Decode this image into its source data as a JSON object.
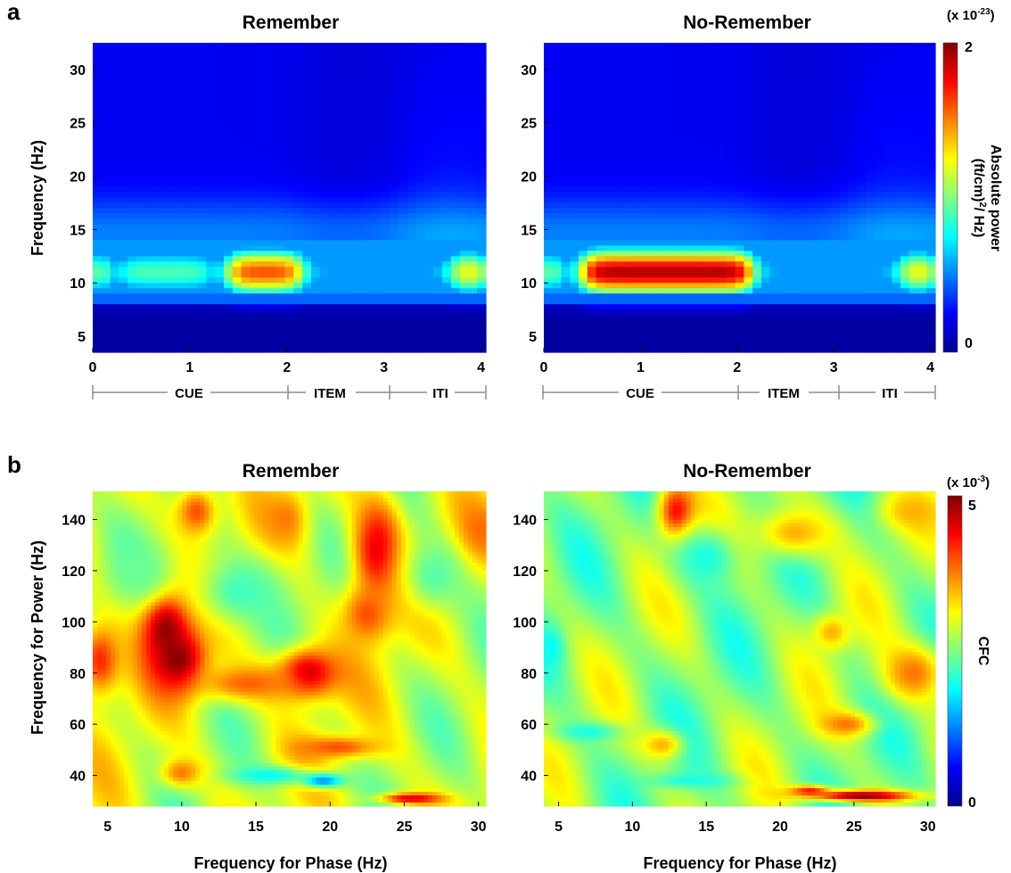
{
  "panel_labels": {
    "a": "a",
    "b": "b"
  },
  "titles": {
    "remember": "Remember",
    "no_remember": "No-Remember"
  },
  "colorscale_stops": [
    "#00008f",
    "#0000ff",
    "#0080ff",
    "#00ffff",
    "#80ff80",
    "#ffff00",
    "#ff8000",
    "#ff0000",
    "#800000"
  ],
  "panel_a": {
    "ylabel": "Frequency (Hz)",
    "x_ticks": [
      0,
      1,
      2,
      3,
      4
    ],
    "y_ticks": [
      5,
      10,
      15,
      20,
      25,
      30
    ],
    "timeline": {
      "cue": "CUE",
      "item": "ITEM",
      "iti": "ITI"
    },
    "colorbar": {
      "multiplier": "(x 10",
      "exponent": "-23",
      "close": ")",
      "max_label": "2",
      "min_label": "0",
      "label_line1": "Absolute power",
      "label_line2": "(ft/cm)",
      "label_sup": "2",
      "label_tail": "/ Hz)"
    }
  },
  "panel_b": {
    "ylabel": "Frequency for Power (Hz)",
    "xlabel": "Frequency for Phase (Hz)",
    "x_ticks": [
      5,
      10,
      15,
      20,
      25,
      30
    ],
    "y_ticks": [
      40,
      60,
      80,
      100,
      120,
      140
    ],
    "colorbar": {
      "multiplier": "(x 10",
      "exponent": "-3",
      "close": ")",
      "max_label": "5",
      "min_label": "0",
      "label": "CFC"
    }
  },
  "chart_data": [
    {
      "type": "heatmap",
      "title": "Remember",
      "ylabel": "Frequency (Hz)",
      "xlim": [
        0,
        4.05
      ],
      "ylim": [
        3.5,
        32.5
      ],
      "zlim": [
        0,
        2
      ],
      "z_units": "x 10^-23 (ft/cm)^2/Hz",
      "features": [
        {
          "t": [
            0,
            0.15
          ],
          "f": [
            8.5,
            13.5
          ],
          "z": 1.2
        },
        {
          "t": [
            0.3,
            1.2
          ],
          "f": [
            9.0,
            13.0
          ],
          "z": 0.9
        },
        {
          "t": [
            1.4,
            2.15
          ],
          "f": [
            9.0,
            13.0
          ],
          "z": 1.6
        },
        {
          "t": [
            2.2,
            3.7
          ],
          "f": [
            9.0,
            13.0
          ],
          "z": 0.5
        },
        {
          "t": [
            3.7,
            4.05
          ],
          "f": [
            9.0,
            13.0
          ],
          "z": 1.3
        },
        {
          "t": [
            0,
            4.05
          ],
          "f": [
            3.5,
            8.0
          ],
          "z": 0.05
        },
        {
          "t": [
            0,
            4.05
          ],
          "f": [
            15,
            32.5
          ],
          "z": 0.2
        }
      ]
    },
    {
      "type": "heatmap",
      "title": "No-Remember",
      "xlim": [
        0,
        4.05
      ],
      "ylim": [
        3.5,
        32.5
      ],
      "zlim": [
        0,
        2
      ],
      "features": [
        {
          "t": [
            0,
            0.15
          ],
          "f": [
            8.5,
            13.5
          ],
          "z": 1.2
        },
        {
          "t": [
            0.4,
            2.15
          ],
          "f": [
            9.0,
            13.0
          ],
          "z": 1.9
        },
        {
          "t": [
            2.2,
            3.7
          ],
          "f": [
            9.0,
            13.0
          ],
          "z": 0.5
        },
        {
          "t": [
            3.7,
            4.05
          ],
          "f": [
            9.0,
            13.0
          ],
          "z": 1.3
        },
        {
          "t": [
            0,
            4.05
          ],
          "f": [
            3.5,
            8.0
          ],
          "z": 0.05
        },
        {
          "t": [
            0,
            4.05
          ],
          "f": [
            15,
            32.5
          ],
          "z": 0.2
        }
      ]
    },
    {
      "type": "heatmap",
      "title": "Remember",
      "xlabel": "Frequency for Phase (Hz)",
      "ylabel": "Frequency for Power (Hz)",
      "xlim": [
        4,
        30.5
      ],
      "ylim": [
        28,
        151
      ],
      "zlim": [
        0,
        5
      ],
      "z_units": "x 10^-3 CFC",
      "baseline": 2.9,
      "blobs": [
        {
          "x": 9,
          "y": 98,
          "sx": 1.2,
          "sy": 10,
          "z": 5.0
        },
        {
          "x": 9.8,
          "y": 85,
          "sx": 1.3,
          "sy": 9,
          "z": 5.0
        },
        {
          "x": 18.5,
          "y": 80,
          "sx": 1.5,
          "sy": 7,
          "z": 4.7
        },
        {
          "x": 14.5,
          "y": 76,
          "sx": 2.5,
          "sy": 5,
          "z": 3.9
        },
        {
          "x": 23.2,
          "y": 128,
          "sx": 1.2,
          "sy": 15,
          "z": 4.5
        },
        {
          "x": 22.5,
          "y": 103,
          "sx": 1.2,
          "sy": 8,
          "z": 4.0
        },
        {
          "x": 4.5,
          "y": 85,
          "sx": 1.0,
          "sy": 10,
          "z": 4.2
        },
        {
          "x": 11,
          "y": 143,
          "sx": 1.0,
          "sy": 7,
          "z": 4.0
        },
        {
          "x": 17,
          "y": 140,
          "sx": 1.0,
          "sy": 8,
          "z": 3.8
        },
        {
          "x": 30,
          "y": 135,
          "sx": 1.0,
          "sy": 8,
          "z": 3.9
        },
        {
          "x": 10,
          "y": 41,
          "sx": 1.0,
          "sy": 4,
          "z": 3.8
        },
        {
          "x": 20.5,
          "y": 51,
          "sx": 2.0,
          "sy": 3,
          "z": 4.0
        },
        {
          "x": 25.5,
          "y": 31,
          "sx": 1.5,
          "sy": 1.5,
          "z": 4.6
        },
        {
          "x": 19.5,
          "y": 38,
          "sx": 1.0,
          "sy": 2,
          "z": 1.2
        },
        {
          "x": 16,
          "y": 40,
          "sx": 2.0,
          "sy": 2.5,
          "z": 1.9
        },
        {
          "x": 14,
          "y": 112,
          "sx": 2.2,
          "sy": 10,
          "z": 2.2
        },
        {
          "x": 27,
          "y": 118,
          "sx": 1.5,
          "sy": 10,
          "z": 2.3
        },
        {
          "x": 7,
          "y": 120,
          "sx": 1.5,
          "sy": 8,
          "z": 2.4
        }
      ]
    },
    {
      "type": "heatmap",
      "title": "No-Remember",
      "xlabel": "Frequency for Phase (Hz)",
      "xlim": [
        4,
        30.5
      ],
      "ylim": [
        28,
        151
      ],
      "zlim": [
        0,
        5
      ],
      "baseline": 2.6,
      "blobs": [
        {
          "x": 13,
          "y": 143,
          "sx": 0.9,
          "sy": 8,
          "z": 4.4
        },
        {
          "x": 25.5,
          "y": 32,
          "sx": 2.5,
          "sy": 1.5,
          "z": 5.0
        },
        {
          "x": 22,
          "y": 34,
          "sx": 1.0,
          "sy": 1.5,
          "z": 4.3
        },
        {
          "x": 24.5,
          "y": 60,
          "sx": 1.3,
          "sy": 3.5,
          "z": 3.8
        },
        {
          "x": 29,
          "y": 80,
          "sx": 1.5,
          "sy": 8,
          "z": 3.8
        },
        {
          "x": 23.5,
          "y": 96,
          "sx": 0.9,
          "sy": 5,
          "z": 3.5
        },
        {
          "x": 21,
          "y": 135,
          "sx": 2.0,
          "sy": 7,
          "z": 3.5
        },
        {
          "x": 29,
          "y": 143,
          "sx": 1.5,
          "sy": 5,
          "z": 3.5
        },
        {
          "x": 12,
          "y": 52,
          "sx": 1.0,
          "sy": 4,
          "z": 3.5
        },
        {
          "x": 4.5,
          "y": 90,
          "sx": 0.6,
          "sy": 6,
          "z": 1.9
        },
        {
          "x": 15,
          "y": 125,
          "sx": 1.5,
          "sy": 8,
          "z": 2.0
        },
        {
          "x": 7,
          "y": 57,
          "sx": 1.5,
          "sy": 2.5,
          "z": 2.0
        },
        {
          "x": 14,
          "y": 38,
          "sx": 2.0,
          "sy": 2,
          "z": 2.0
        }
      ]
    }
  ]
}
